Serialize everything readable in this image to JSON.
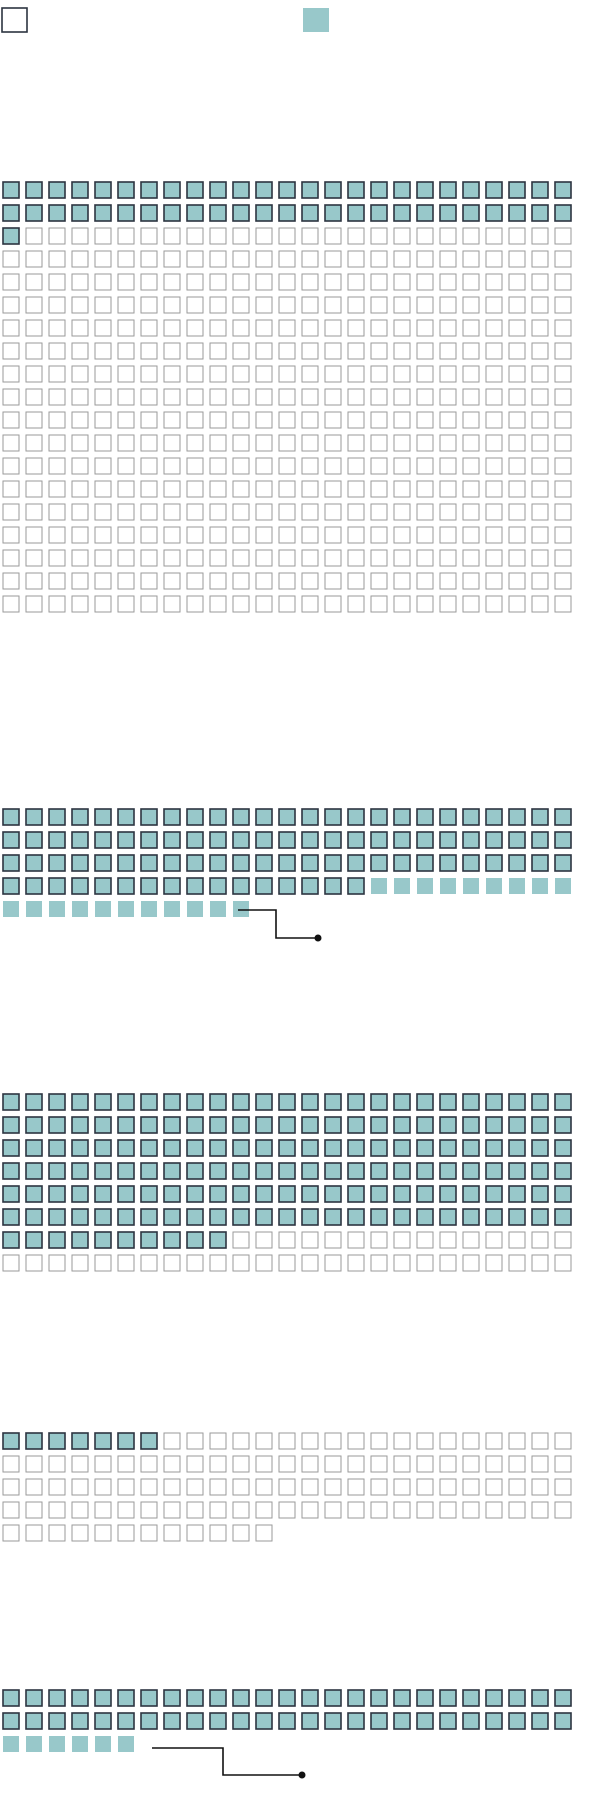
{
  "chart_data": {
    "type": "waffle",
    "colors": {
      "fill": "#98c8ca",
      "outline": "#2c3440",
      "empty_outline": "#9a9a9a"
    },
    "legend": [
      {
        "symbol": "outlined-empty-square",
        "label": ""
      },
      {
        "symbol": "solid-teal-square",
        "label": ""
      }
    ],
    "groups": [
      {
        "total": 475,
        "outlined_filled": 51,
        "solid_only": 0,
        "leader": false
      },
      {
        "total": 111,
        "outlined_filled": 91,
        "solid_only": 20,
        "leader": true
      },
      {
        "total": 200,
        "outlined_filled": 160,
        "solid_only": 0,
        "leader": false
      },
      {
        "total": 112,
        "outlined_filled": 7,
        "solid_only": 0,
        "leader": false
      },
      {
        "total": 56,
        "outlined_filled": 50,
        "solid_only": 6,
        "leader": true
      }
    ]
  }
}
